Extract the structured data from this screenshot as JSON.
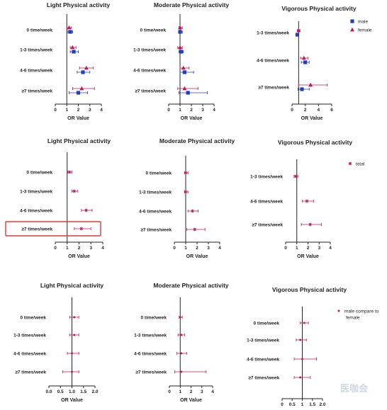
{
  "colors": {
    "male": "#1f3fbf",
    "female": "#c2185b",
    "total": "#c2185b",
    "compare": "#c2185b",
    "highlight": "#e53935",
    "axis": "#222222"
  },
  "watermark": "医咖会",
  "chart_data": [
    {
      "type": "scatter",
      "style": "forest",
      "title": "Light Physical activity",
      "categories": [
        "0 time/week",
        "1-3 times/week",
        "4-6 times/week",
        "≥7 times/week"
      ],
      "xlabel": "OR Value",
      "xlim": [
        0,
        4
      ],
      "xticks": [
        "0",
        "1",
        "2",
        "3",
        "4"
      ],
      "ref": 1,
      "series": [
        {
          "name": "male",
          "marker": "square",
          "color": "#1f3fbf",
          "values": [
            1.3,
            1.6,
            2.4,
            2.0
          ],
          "low": [
            1.1,
            1.3,
            1.9,
            1.2
          ],
          "high": [
            1.5,
            2.0,
            3.0,
            2.8
          ]
        },
        {
          "name": "female",
          "marker": "triangle",
          "color": "#c2185b",
          "values": [
            1.2,
            1.5,
            2.7,
            2.3
          ],
          "low": [
            1.0,
            1.3,
            2.1,
            1.5
          ],
          "high": [
            1.4,
            1.8,
            3.3,
            3.4
          ]
        }
      ]
    },
    {
      "type": "scatter",
      "style": "forest",
      "title": "Moderate Physical activity",
      "categories": [
        "0 time/week",
        "1-3 times/week",
        "4-6 times/week",
        "≥7 times/week"
      ],
      "xlabel": "OR Value",
      "xlim": [
        0,
        4
      ],
      "xticks": [
        "0",
        "1",
        "2",
        "3",
        "4"
      ],
      "ref": 1,
      "series": [
        {
          "name": "male",
          "marker": "square",
          "color": "#1f3fbf",
          "values": [
            1.0,
            1.1,
            1.4,
            1.7
          ],
          "low": [
            0.9,
            0.9,
            1.0,
            0.9
          ],
          "high": [
            1.2,
            1.3,
            2.2,
            3.4
          ]
        },
        {
          "name": "female",
          "marker": "triangle",
          "color": "#c2185b",
          "values": [
            1.0,
            1.0,
            1.3,
            1.4
          ],
          "low": [
            0.9,
            0.8,
            1.0,
            0.8
          ],
          "high": [
            1.2,
            1.2,
            1.8,
            2.6
          ]
        }
      ]
    },
    {
      "type": "scatter",
      "style": "forest",
      "title": "Vigorous Physical activity",
      "categories": [
        "1-3 times/week",
        "4-6 times/week",
        "≥7 times/week"
      ],
      "xlabel": "OR Value",
      "xlim": [
        0,
        6
      ],
      "xticks": [
        "0",
        "2",
        "4",
        "6"
      ],
      "ref": 1,
      "legend": "top-right",
      "series": [
        {
          "name": "male",
          "marker": "square",
          "color": "#1f3fbf",
          "values": [
            0.8,
            2.0,
            1.5
          ],
          "low": [
            0.6,
            1.4,
            0.9
          ],
          "high": [
            1.0,
            2.6,
            2.6
          ]
        },
        {
          "name": "female",
          "marker": "triangle",
          "color": "#c2185b",
          "values": [
            1.0,
            1.8,
            2.8
          ],
          "low": [
            0.8,
            1.3,
            1.0
          ],
          "high": [
            1.2,
            2.4,
            5.3
          ]
        }
      ]
    },
    {
      "type": "scatter",
      "style": "forest",
      "title": "Light Physical activity",
      "categories": [
        "0 time/week",
        "1-3 times/week",
        "4-6 times/week",
        "≥7 times/week"
      ],
      "xlabel": "OR Value",
      "xlim": [
        0,
        4
      ],
      "xticks": [
        "0",
        "1",
        "2",
        "3",
        "4"
      ],
      "ref": 1,
      "highlight": "≥7 times/week",
      "series": [
        {
          "name": "total",
          "marker": "star",
          "color": "#c2185b",
          "values": [
            1.2,
            1.6,
            2.6,
            2.2
          ],
          "low": [
            1.05,
            1.4,
            2.2,
            1.6
          ],
          "high": [
            1.4,
            1.9,
            3.1,
            3.0
          ]
        }
      ]
    },
    {
      "type": "scatter",
      "style": "forest",
      "title": "Moderate Physical activity",
      "categories": [
        "0 time/week",
        "1-3 times/week",
        "4-6 times/week",
        "≥7 times/week"
      ],
      "xlabel": "OR Value",
      "xlim": [
        0,
        4
      ],
      "xticks": [
        "0",
        "1",
        "2",
        "3",
        "4"
      ],
      "ref": 1,
      "series": [
        {
          "name": "total",
          "marker": "star",
          "color": "#c2185b",
          "values": [
            1.0,
            1.0,
            1.6,
            1.8
          ],
          "low": [
            0.9,
            0.9,
            1.2,
            1.1
          ],
          "high": [
            1.2,
            1.2,
            2.1,
            2.7
          ]
        }
      ]
    },
    {
      "type": "scatter",
      "style": "forest",
      "title": "Vigorous Physical activity",
      "categories": [
        "1-3 times/week",
        "4-6 times/week",
        "≥7 times/week"
      ],
      "xlabel": "OR Value",
      "xlim": [
        0,
        4
      ],
      "xticks": [
        "0",
        "1",
        "2",
        "3",
        "4"
      ],
      "ref": 1,
      "legend": "top-right",
      "series": [
        {
          "name": "total",
          "marker": "star",
          "color": "#c2185b",
          "values": [
            0.9,
            1.9,
            2.2
          ],
          "low": [
            0.75,
            1.5,
            1.4
          ],
          "high": [
            1.1,
            2.5,
            3.2
          ]
        }
      ]
    },
    {
      "type": "scatter",
      "style": "forest",
      "title": "Light Physical activity",
      "categories": [
        "0 time/week",
        "1-3 times/week",
        "4-6 times/week",
        "≥7 times/week"
      ],
      "xlabel": "OR Value",
      "xlim": [
        0,
        2
      ],
      "xticks": [
        "0.0",
        "0.5",
        "1.0",
        "1.5",
        "2.0"
      ],
      "ref": 1,
      "series": [
        {
          "name": "male compare to female",
          "marker": "dot",
          "color": "#c2185b",
          "values": [
            1.1,
            1.1,
            1.0,
            1.0
          ],
          "low": [
            0.9,
            0.9,
            0.8,
            0.6
          ],
          "high": [
            1.3,
            1.3,
            1.3,
            1.3
          ]
        }
      ]
    },
    {
      "type": "scatter",
      "style": "forest",
      "title": "Moderate Physical activity",
      "categories": [
        "0 time/week",
        "1-3 times/week",
        "4-6 times/week",
        "≥7 times/week"
      ],
      "xlabel": "OR Value",
      "xlim": [
        0,
        4
      ],
      "xticks": [
        "0",
        "1",
        "2",
        "3",
        "4"
      ],
      "ref": 1,
      "series": [
        {
          "name": "male compare to female",
          "marker": "dot",
          "color": "#c2185b",
          "values": [
            1.0,
            1.1,
            1.1,
            1.1
          ],
          "low": [
            0.9,
            0.8,
            0.7,
            0.5
          ],
          "high": [
            1.2,
            1.4,
            1.6,
            3.4
          ]
        }
      ]
    },
    {
      "type": "scatter",
      "style": "forest",
      "title": "Vigorous Physical activity",
      "categories": [
        "0 time/week",
        "1-3 times/week",
        "4-6 times/week",
        "≥7 times/week"
      ],
      "xlabel": "OR Value",
      "xlim": [
        0,
        2
      ],
      "xticks": [
        "0",
        "0.5",
        "1",
        "1.5",
        "2.0"
      ],
      "ref": 1,
      "legend": "top-right",
      "series": [
        {
          "name": "male compare to female",
          "marker": "dot",
          "color": "#c2185b",
          "values": [
            1.1,
            0.9,
            1.0,
            0.9
          ],
          "low": [
            0.9,
            0.7,
            0.6,
            0.6
          ],
          "high": [
            1.3,
            1.2,
            1.7,
            1.4
          ]
        }
      ]
    }
  ]
}
